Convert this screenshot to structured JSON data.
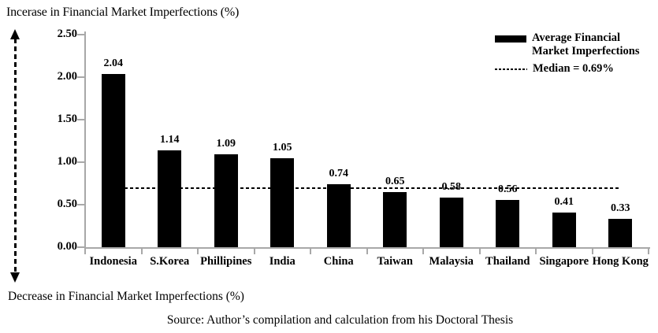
{
  "chart_data": {
    "type": "bar",
    "top_label": "Incerase in Financial Market Imperfections (%)",
    "bottom_label": "Decrease in Financial Market Imperfections (%)",
    "source": "Source: Author’s compilation and calculation from his Doctoral Thesis",
    "categories": [
      "Indonesia",
      "S.Korea",
      "Phillipines",
      "India",
      "China",
      "Taiwan",
      "Malaysia",
      "Thailand",
      "Singapore",
      "Hong Kong"
    ],
    "series": [
      {
        "name": "Average Financial Market Imperfections",
        "values": [
          2.04,
          1.14,
          1.09,
          1.05,
          0.74,
          0.65,
          0.58,
          0.56,
          0.41,
          0.33
        ]
      }
    ],
    "value_labels": [
      "2.04",
      "1.14",
      "1.09",
      "1.05",
      "0.74",
      "0.65",
      "0.58",
      "0.56",
      "0.41",
      "0.33"
    ],
    "annotations": {
      "median_value": 0.69,
      "median_label": "Median = 0.69%"
    },
    "ylim": [
      0,
      2.5
    ],
    "yticks": [
      "0.00",
      "0.50",
      "1.00",
      "1.50",
      "2.00",
      "2.50"
    ],
    "grid": false,
    "legend_position": "top-right",
    "bar_color": "#000000",
    "axis_color": "#a8a8a8",
    "median_line_style": "dashed"
  }
}
